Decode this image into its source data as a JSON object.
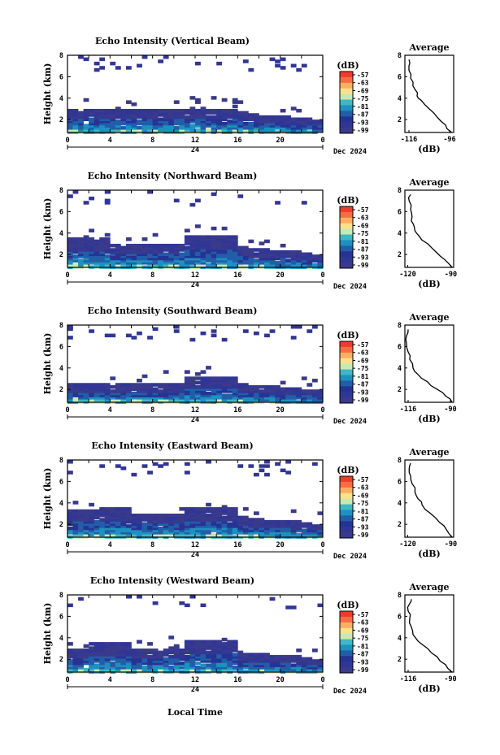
{
  "figure": {
    "xlabel": "Local Time",
    "height_label": "Height (km)",
    "avg_title": "Average",
    "avg_xlabel": "(dB)",
    "colorbar_unit": "(dB)",
    "date_label": "Dec 2024",
    "day_label": "24"
  },
  "colorbar": {
    "ticks": [
      "-57",
      "-63",
      "-69",
      "-75",
      "-81",
      "-87",
      "-93",
      "-99"
    ],
    "colors": [
      "#ef3b2c",
      "#f46d43",
      "#fdae61",
      "#fee08b",
      "#c7e9b4",
      "#41b6c4",
      "#1d91c0",
      "#225ea8",
      "#253494",
      "#313695",
      "#3a3a8c"
    ]
  },
  "chart_data": [
    {
      "type": "heatmap",
      "title": "Echo Intensity (Vertical Beam)",
      "beam": "vertical",
      "x_ticks": [
        "0",
        "4",
        "8",
        "12",
        "16",
        "20",
        "0"
      ],
      "y_ticks": [
        "2",
        "4",
        "6",
        "8"
      ],
      "ylim": [
        0.8,
        8
      ],
      "xlim": [
        0,
        24
      ],
      "echo_top_km": [
        3.0,
        3.0,
        3.0,
        3.0,
        3.0,
        3.0,
        3.0,
        3.0,
        3.0,
        3.0,
        3.0,
        3.0,
        3.0,
        3.0,
        3.0,
        3.0,
        2.8,
        2.6,
        2.4,
        2.3,
        2.2,
        2.1,
        2.0,
        1.9
      ],
      "average": {
        "x_ticks": [
          "-116",
          "-96"
        ],
        "xlim": [
          -118,
          -94
        ],
        "y_ticks": [
          "2",
          "4",
          "6",
          "8"
        ],
        "profile": [
          [
            -95,
            0.8
          ],
          [
            -98,
            1.5
          ],
          [
            -102,
            2.2
          ],
          [
            -106,
            3.0
          ],
          [
            -110,
            3.8
          ],
          [
            -112,
            4.2
          ],
          [
            -113,
            4.8
          ],
          [
            -114,
            5.5
          ],
          [
            -115,
            6.2
          ],
          [
            -116,
            7.0
          ],
          [
            -116,
            7.6
          ]
        ]
      }
    },
    {
      "type": "heatmap",
      "title": "Echo Intensity (Northward Beam)",
      "beam": "northward",
      "x_ticks": [
        "0",
        "4",
        "8",
        "12",
        "16",
        "20",
        "0"
      ],
      "y_ticks": [
        "2",
        "4",
        "6",
        "8"
      ],
      "ylim": [
        0.8,
        8
      ],
      "xlim": [
        0,
        24
      ],
      "echo_top_km": [
        3.6,
        3.6,
        3.6,
        3.6,
        3.2,
        3.0,
        3.0,
        3.0,
        3.0,
        3.0,
        3.0,
        3.8,
        3.8,
        3.8,
        3.8,
        3.8,
        2.8,
        2.6,
        2.5,
        2.4,
        2.3,
        2.2,
        2.0,
        1.9
      ],
      "average": {
        "x_ticks": [
          "-120",
          "-90"
        ],
        "xlim": [
          -122,
          -88
        ],
        "y_ticks": [
          "2",
          "4",
          "6",
          "8"
        ],
        "profile": [
          [
            -89,
            0.8
          ],
          [
            -94,
            1.5
          ],
          [
            -100,
            2.2
          ],
          [
            -106,
            3.0
          ],
          [
            -112,
            3.7
          ],
          [
            -115,
            4.2
          ],
          [
            -116,
            4.8
          ],
          [
            -117,
            5.5
          ],
          [
            -118,
            6.2
          ],
          [
            -119,
            7.0
          ],
          [
            -118,
            7.6
          ]
        ]
      }
    },
    {
      "type": "heatmap",
      "title": "Echo Intensity (Southward Beam)",
      "beam": "southward",
      "x_ticks": [
        "0",
        "4",
        "8",
        "12",
        "16",
        "20",
        "0"
      ],
      "y_ticks": [
        "2",
        "4",
        "6",
        "8"
      ],
      "ylim": [
        0.8,
        8
      ],
      "xlim": [
        0,
        24
      ],
      "echo_top_km": [
        2.6,
        2.6,
        2.6,
        2.6,
        2.6,
        2.6,
        2.6,
        2.6,
        2.6,
        2.6,
        2.6,
        3.2,
        3.2,
        3.2,
        3.2,
        3.2,
        2.6,
        2.4,
        2.3,
        2.2,
        2.1,
        2.0,
        1.9,
        1.8
      ],
      "average": {
        "x_ticks": [
          "-116",
          "-90"
        ],
        "xlim": [
          -118,
          -88
        ],
        "y_ticks": [
          "2",
          "4",
          "6",
          "8"
        ],
        "profile": [
          [
            -89,
            0.8
          ],
          [
            -93,
            1.4
          ],
          [
            -98,
            2.0
          ],
          [
            -104,
            2.7
          ],
          [
            -110,
            3.4
          ],
          [
            -113,
            4.0
          ],
          [
            -115,
            4.8
          ],
          [
            -116,
            5.5
          ],
          [
            -117,
            6.3
          ],
          [
            -117,
            7.0
          ],
          [
            -116,
            7.6
          ]
        ]
      }
    },
    {
      "type": "heatmap",
      "title": "Echo Intensity (Eastward Beam)",
      "beam": "eastward",
      "x_ticks": [
        "0",
        "4",
        "8",
        "12",
        "16",
        "20",
        "0"
      ],
      "y_ticks": [
        "2",
        "4",
        "6",
        "8"
      ],
      "ylim": [
        0.8,
        8
      ],
      "xlim": [
        0,
        24
      ],
      "echo_top_km": [
        3.4,
        3.4,
        3.4,
        3.6,
        3.6,
        3.6,
        3.0,
        3.0,
        3.0,
        3.0,
        3.0,
        3.6,
        3.6,
        3.6,
        3.6,
        3.6,
        2.8,
        2.6,
        2.5,
        2.4,
        2.3,
        2.2,
        2.0,
        1.9
      ],
      "average": {
        "x_ticks": [
          "-120",
          "-90"
        ],
        "xlim": [
          -122,
          -88
        ],
        "y_ticks": [
          "2",
          "4",
          "6",
          "8"
        ],
        "profile": [
          [
            -89,
            0.8
          ],
          [
            -93,
            1.5
          ],
          [
            -98,
            2.2
          ],
          [
            -104,
            3.0
          ],
          [
            -110,
            3.8
          ],
          [
            -113,
            4.4
          ],
          [
            -115,
            5.0
          ],
          [
            -117,
            5.8
          ],
          [
            -118,
            6.5
          ],
          [
            -119,
            7.2
          ],
          [
            -118,
            7.7
          ]
        ]
      }
    },
    {
      "type": "heatmap",
      "title": "Echo Intensity (Westward Beam)",
      "beam": "westward",
      "x_ticks": [
        "0",
        "4",
        "8",
        "12",
        "16",
        "20",
        "0"
      ],
      "y_ticks": [
        "2",
        "4",
        "6",
        "8"
      ],
      "ylim": [
        0.8,
        8
      ],
      "xlim": [
        0,
        24
      ],
      "echo_top_km": [
        3.0,
        3.0,
        3.6,
        3.6,
        3.6,
        3.6,
        3.0,
        3.0,
        3.0,
        3.0,
        3.0,
        3.8,
        3.8,
        3.8,
        3.8,
        3.8,
        2.8,
        2.6,
        2.5,
        2.4,
        2.3,
        2.2,
        2.0,
        1.9
      ],
      "average": {
        "x_ticks": [
          "-116",
          "-90"
        ],
        "xlim": [
          -118,
          -88
        ],
        "y_ticks": [
          "2",
          "4",
          "6",
          "8"
        ],
        "profile": [
          [
            -89,
            0.8
          ],
          [
            -93,
            1.5
          ],
          [
            -98,
            2.2
          ],
          [
            -104,
            3.0
          ],
          [
            -110,
            3.7
          ],
          [
            -113,
            4.3
          ],
          [
            -114,
            5.0
          ],
          [
            -115,
            5.8
          ],
          [
            -116,
            6.5
          ],
          [
            -115,
            7.2
          ],
          [
            -114,
            7.6
          ]
        ]
      }
    }
  ]
}
